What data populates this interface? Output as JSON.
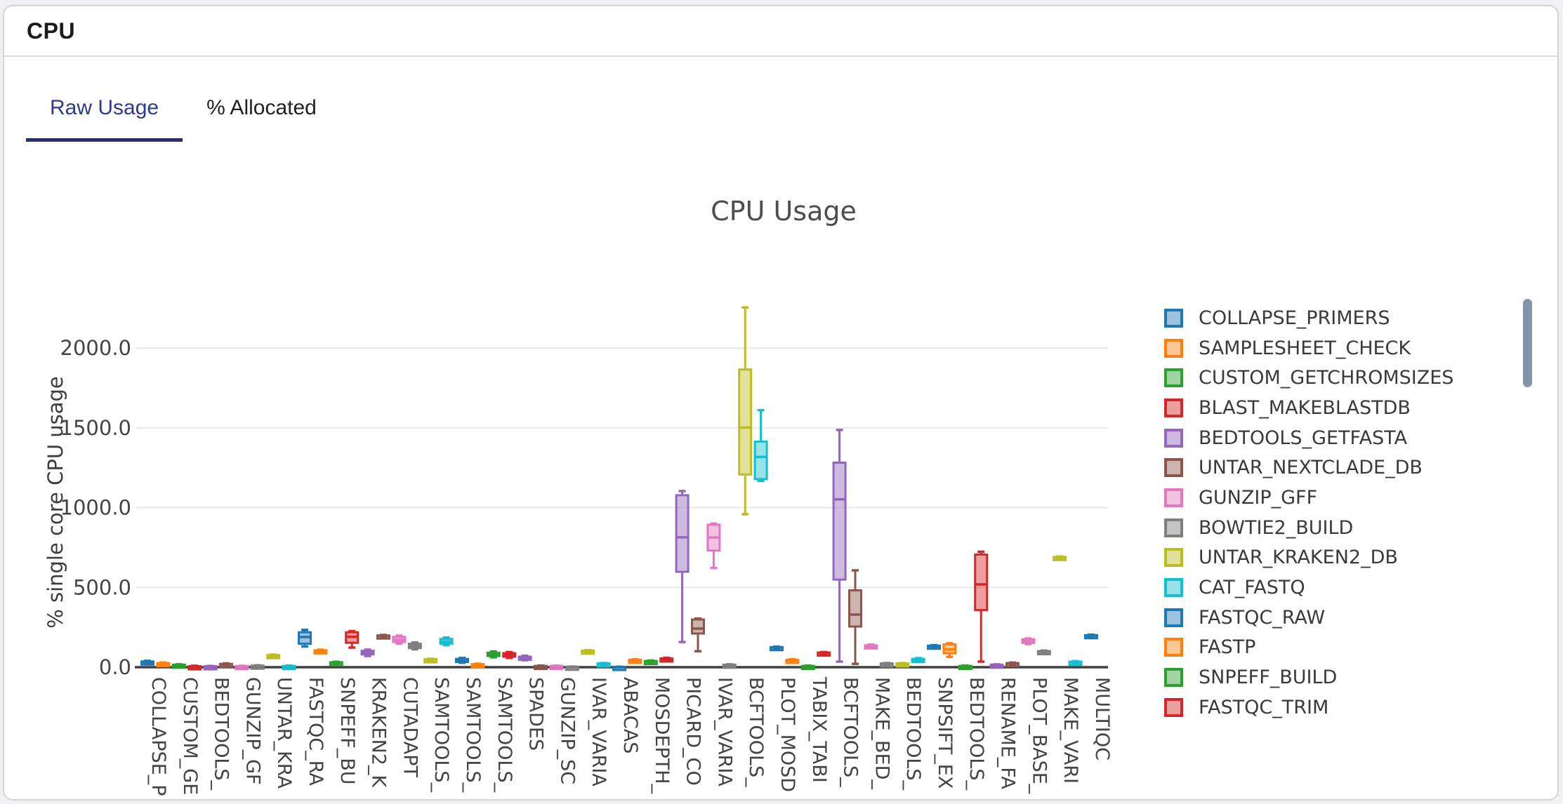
{
  "header": {
    "title": "CPU"
  },
  "tabs": [
    {
      "label": "Raw Usage",
      "active": true
    },
    {
      "label": "% Allocated",
      "active": false
    }
  ],
  "colors": {
    "active_tab_text": "#2e3a8c",
    "active_tab_underline": "#27306e",
    "scrollbar_thumb": "#8791a9",
    "grid_line": "#e8e8e8",
    "axis_line": "#3f3f3f",
    "tick_text": "#444444",
    "title_text": "#4d4d4d"
  },
  "chart_data": {
    "type": "box",
    "title": "CPU Usage",
    "ylabel": "% single core CPU usage",
    "ylim": [
      0,
      2350
    ],
    "grid": "horizontal",
    "legend_position": "right",
    "ytick_values": [
      0,
      500,
      1000,
      1500,
      2000
    ],
    "ytick_labels": [
      "0.0",
      "500.0",
      "1000.0",
      "1500.0",
      "2000.0"
    ],
    "palette": [
      "#1f77b4",
      "#ff7f0e",
      "#2ca02c",
      "#d62728",
      "#9467bd",
      "#8c564b",
      "#e377c2",
      "#7f7f7f",
      "#bcbd22",
      "#17becf"
    ],
    "legend": [
      "COLLAPSE_PRIMERS",
      "SAMPLESHEET_CHECK",
      "CUSTOM_GETCHROMSIZES",
      "BLAST_MAKEBLASTDB",
      "BEDTOOLS_GETFASTA",
      "UNTAR_NEXTCLADE_DB",
      "GUNZIP_GFF",
      "BOWTIE2_BUILD",
      "UNTAR_KRAKEN2_DB",
      "CAT_FASTQ",
      "FASTQC_RAW",
      "FASTP",
      "SNPEFF_BUILD",
      "FASTQC_TRIM"
    ],
    "boxes": [
      {
        "tick": "COLLAPSE_P",
        "values": [
          22,
          26,
          31,
          36,
          40
        ]
      },
      {
        "tick": "",
        "values": [
          15,
          19,
          22,
          26,
          29
        ]
      },
      {
        "tick": "CUSTOM_GE",
        "values": [
          9,
          11,
          13,
          16,
          18
        ]
      },
      {
        "tick": "",
        "values": [
          1,
          2,
          4,
          6,
          9
        ]
      },
      {
        "tick": "BEDTOOLS_",
        "values": [
          1,
          2,
          4,
          6,
          8
        ]
      },
      {
        "tick": "",
        "values": [
          13,
          15,
          18,
          21,
          24
        ]
      },
      {
        "tick": "GUNZIP_GF",
        "values": [
          2,
          3,
          5,
          7,
          9
        ]
      },
      {
        "tick": "",
        "values": [
          4,
          6,
          8,
          10,
          12
        ]
      },
      {
        "tick": "UNTAR_KRA",
        "values": [
          66,
          69,
          72,
          76,
          79
        ]
      },
      {
        "tick": "",
        "values": [
          2,
          4,
          6,
          8,
          10
        ]
      },
      {
        "tick": "FASTQC_RA",
        "values": [
          130,
          147,
          189,
          219,
          234
        ]
      },
      {
        "tick": "",
        "values": [
          92,
          97,
          101,
          106,
          110
        ]
      },
      {
        "tick": "SNPEFF_BU",
        "values": [
          22,
          25,
          28,
          31,
          34
        ]
      },
      {
        "tick": "",
        "values": [
          123,
          153,
          190,
          219,
          226
        ]
      },
      {
        "tick": "KRAKEN2_K",
        "values": [
          70,
          80,
          90,
          103,
          110
        ]
      },
      {
        "tick": "",
        "values": [
          192,
          195,
          197,
          199,
          202
        ]
      },
      {
        "tick": "CUTADAPT",
        "values": [
          148,
          158,
          172,
          190,
          198
        ]
      },
      {
        "tick": "",
        "values": [
          112,
          120,
          133,
          147,
          155
        ]
      },
      {
        "tick": "SAMTOOLS_",
        "values": [
          41,
          44,
          47,
          50,
          53
        ]
      },
      {
        "tick": "",
        "values": [
          138,
          148,
          160,
          177,
          186
        ]
      },
      {
        "tick": "SAMTOOLS_",
        "values": [
          28,
          34,
          43,
          52,
          58
        ]
      },
      {
        "tick": "",
        "values": [
          10,
          13,
          16,
          19,
          22
        ]
      },
      {
        "tick": "SAMTOOLS_",
        "values": [
          62,
          70,
          79,
          91,
          99
        ]
      },
      {
        "tick": "",
        "values": [
          58,
          66,
          76,
          88,
          95
        ]
      },
      {
        "tick": "SPADES",
        "values": [
          44,
          50,
          57,
          66,
          72
        ]
      },
      {
        "tick": "",
        "values": [
          3,
          4,
          6,
          8,
          10
        ]
      },
      {
        "tick": "GUNZIP_SC",
        "values": [
          3,
          4,
          6,
          8,
          10
        ]
      },
      {
        "tick": "",
        "values": [
          0,
          1,
          2,
          3,
          4
        ]
      },
      {
        "tick": "IVAR_VARIA",
        "values": [
          95,
          98,
          101,
          104,
          107
        ]
      },
      {
        "tick": "",
        "values": [
          16,
          18,
          21,
          24,
          26
        ]
      },
      {
        "tick": "ABACAS",
        "values": [
          0,
          0,
          1,
          2,
          3
        ]
      },
      {
        "tick": "",
        "values": [
          37,
          40,
          43,
          46,
          49
        ]
      },
      {
        "tick": "MOSDEPTH_",
        "values": [
          28,
          31,
          35,
          39,
          42
        ]
      },
      {
        "tick": "",
        "values": [
          42,
          46,
          50,
          55,
          59
        ]
      },
      {
        "tick": "PICARD_CO",
        "values": [
          158,
          598,
          814,
          1078,
          1104
        ]
      },
      {
        "tick": "",
        "values": [
          100,
          211,
          242,
          299,
          305
        ]
      },
      {
        "tick": "IVAR_VARIA",
        "values": [
          622,
          731,
          813,
          893,
          900
        ]
      },
      {
        "tick": "",
        "values": [
          8,
          10,
          13,
          16,
          18
        ]
      },
      {
        "tick": "BCFTOOLS_",
        "values": [
          959,
          1208,
          1502,
          1866,
          2255
        ]
      },
      {
        "tick": "",
        "values": [
          1168,
          1179,
          1318,
          1414,
          1611
        ]
      },
      {
        "tick": "PLOT_MOSD",
        "values": [
          117,
          120,
          123,
          126,
          129
        ]
      },
      {
        "tick": "",
        "values": [
          37,
          40,
          43,
          46,
          49
        ]
      },
      {
        "tick": "TABIX_TABI",
        "values": [
          2,
          4,
          6,
          8,
          10
        ]
      },
      {
        "tick": "",
        "values": [
          83,
          86,
          89,
          92,
          95
        ]
      },
      {
        "tick": "BCFTOOLS_",
        "values": [
          35,
          549,
          1052,
          1282,
          1487
        ]
      },
      {
        "tick": "",
        "values": [
          21,
          255,
          330,
          482,
          607
        ]
      },
      {
        "tick": "MAKE_BED_",
        "values": [
          120,
          126,
          131,
          137,
          142
        ]
      },
      {
        "tick": "",
        "values": [
          16,
          18,
          21,
          24,
          26
        ]
      },
      {
        "tick": "BEDTOOLS_",
        "values": [
          16,
          18,
          21,
          24,
          26
        ]
      },
      {
        "tick": "",
        "values": [
          36,
          41,
          47,
          52,
          57
        ]
      },
      {
        "tick": "SNPSIFT_EX",
        "values": [
          124,
          128,
          131,
          135,
          138
        ]
      },
      {
        "tick": "",
        "values": [
          65,
          87,
          111,
          143,
          150
        ]
      },
      {
        "tick": "BEDTOOLS_",
        "values": [
          2,
          4,
          6,
          8,
          10
        ]
      },
      {
        "tick": "",
        "values": [
          35,
          358,
          519,
          706,
          724
        ]
      },
      {
        "tick": "RENAME_FA",
        "values": [
          8,
          10,
          13,
          16,
          18
        ]
      },
      {
        "tick": "",
        "values": [
          17,
          20,
          23,
          26,
          29
        ]
      },
      {
        "tick": "PLOT_BASE_",
        "values": [
          145,
          152,
          163,
          175,
          180
        ]
      },
      {
        "tick": "",
        "values": [
          93,
          95,
          98,
          101,
          104
        ]
      },
      {
        "tick": "MAKE_VARI",
        "values": [
          683,
          685,
          688,
          691,
          694
        ]
      },
      {
        "tick": "",
        "values": [
          26,
          29,
          32,
          35,
          38
        ]
      },
      {
        "tick": "MULTIQC",
        "values": [
          190,
          193,
          197,
          201,
          204
        ]
      }
    ]
  }
}
